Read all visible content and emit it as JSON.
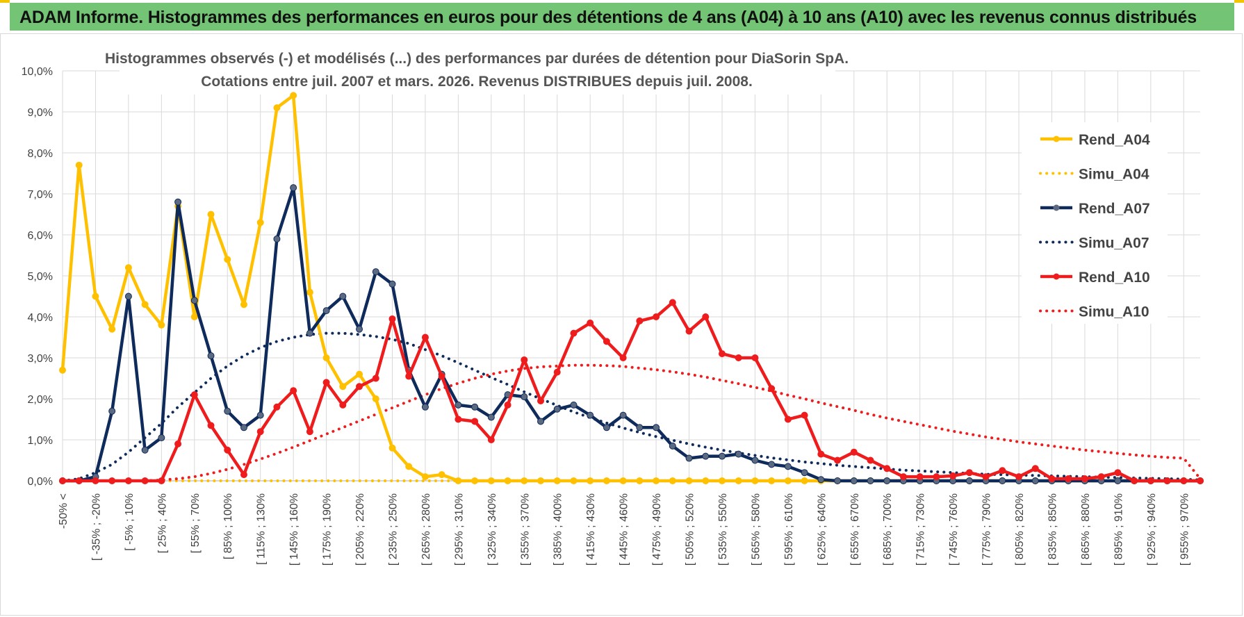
{
  "header": {
    "title": "ADAM Informe. Histogrammes des performances en euros pour des détentions de 4 ans (A04) à 10 ans (A10) avec les revenus connus distribués"
  },
  "colors": {
    "header_bg": "#74c476",
    "corner_accent": "#f2c500",
    "grid": "#d9d9d9"
  },
  "chart_data": {
    "type": "line",
    "title": "Histogrammes observés (-) et modélisés (...) des performances par durées de détention pour DiaSorin SpA.",
    "subtitle": "Cotations entre juil. 2007 et mars. 2026. Revenus DISTRIBUES depuis juil. 2008.",
    "xlabel": "",
    "ylabel": "",
    "ylim": [
      0,
      10
    ],
    "grid": true,
    "legend_position": "right",
    "y_ticks": [
      "0,0%",
      "1,0%",
      "2,0%",
      "3,0%",
      "4,0%",
      "5,0%",
      "6,0%",
      "7,0%",
      "8,0%",
      "9,0%",
      "10,0%"
    ],
    "x_tick_labels": [
      "-50% <",
      "[ -35% ; -20%",
      "[ -5% ; 10%",
      "[ 25% ; 40%",
      "[ 55% ; 70%",
      "[ 85% ; 100%",
      "[ 115% ; 130%",
      "[ 145% ; 160%",
      "[ 175% ; 190%",
      "[ 205% ; 220%",
      "[ 235% ; 250%",
      "[ 265% ; 280%",
      "[ 295% ; 310%",
      "[ 325% ; 340%",
      "[ 355% ; 370%",
      "[ 385% ; 400%",
      "[ 415% ; 430%",
      "[ 445% ; 460%",
      "[ 475% ; 490%",
      "[ 505% ; 520%",
      "[ 535% ; 550%",
      "[ 565% ; 580%",
      "[ 595% ; 610%",
      "[ 625% ; 640%",
      "[ 655% ; 670%",
      "[ 685% ; 700%",
      "[ 715% ; 730%",
      "[ 745% ; 760%",
      "[ 775% ; 790%",
      "[ 805% ; 820%",
      "[ 835% ; 850%",
      "[ 865% ; 880%",
      "[ 895% ; 910%",
      "[ 925% ; 940%",
      "[ 955% ; 970%"
    ],
    "n_categories": 70,
    "series": [
      {
        "name": "Rend_A04",
        "style": "solid",
        "color": "#ffc000",
        "values": [
          2.7,
          7.7,
          4.5,
          3.7,
          5.2,
          4.3,
          3.8,
          6.7,
          4.0,
          6.5,
          5.4,
          4.3,
          6.3,
          9.1,
          9.4,
          4.6,
          3.0,
          2.3,
          2.6,
          2.0,
          0.8,
          0.35,
          0.1,
          0.15,
          0,
          0,
          0,
          0,
          0,
          0,
          0,
          0,
          0,
          0,
          0,
          0,
          0,
          0,
          0,
          0,
          0,
          0,
          0,
          0,
          0,
          0,
          0,
          0,
          0,
          0,
          0,
          0,
          0,
          0,
          0,
          0,
          0,
          0,
          0,
          0,
          0,
          0,
          0,
          0,
          0,
          0,
          0,
          0,
          0,
          0
        ]
      },
      {
        "name": "Simu_A04",
        "style": "dotted",
        "color": "#ffc000",
        "values": [
          0,
          0,
          0,
          0,
          0,
          0,
          0,
          0,
          0,
          0,
          0,
          0,
          0,
          0,
          0,
          0,
          0,
          0,
          0,
          0,
          0,
          0,
          0,
          0,
          0,
          0,
          0,
          0,
          0,
          0,
          0,
          0,
          0,
          0,
          0,
          0,
          0,
          0,
          0,
          0,
          0,
          0,
          0,
          0,
          0,
          0,
          0,
          0,
          0,
          0,
          0,
          0,
          0,
          0,
          0,
          0,
          0,
          0,
          0,
          0,
          0,
          0,
          0,
          0,
          0,
          0,
          0,
          0,
          0,
          0
        ]
      },
      {
        "name": "Rend_A07",
        "style": "solid",
        "color": "#0f2b5b",
        "values": [
          0,
          0,
          0.1,
          1.7,
          4.5,
          0.75,
          1.05,
          6.8,
          4.4,
          3.05,
          1.7,
          1.3,
          1.6,
          5.9,
          7.15,
          3.6,
          4.15,
          4.5,
          3.7,
          5.1,
          4.8,
          2.7,
          1.8,
          2.6,
          1.85,
          1.8,
          1.55,
          2.1,
          2.05,
          1.45,
          1.75,
          1.85,
          1.6,
          1.3,
          1.6,
          1.3,
          1.3,
          0.85,
          0.55,
          0.6,
          0.6,
          0.65,
          0.5,
          0.4,
          0.35,
          0.2,
          0.03,
          0,
          0,
          0,
          0,
          0,
          0,
          0,
          0,
          0,
          0,
          0,
          0,
          0,
          0,
          0,
          0,
          0,
          0,
          0,
          0,
          0,
          0,
          0
        ]
      },
      {
        "name": "Simu_A07",
        "style": "dotted",
        "color": "#0f2b5b",
        "values": [
          0,
          0.05,
          0.2,
          0.4,
          0.7,
          1.05,
          1.4,
          1.8,
          2.15,
          2.5,
          2.8,
          3.05,
          3.25,
          3.4,
          3.5,
          3.57,
          3.6,
          3.6,
          3.57,
          3.52,
          3.45,
          3.35,
          3.2,
          3.05,
          2.88,
          2.7,
          2.52,
          2.35,
          2.17,
          2.0,
          1.84,
          1.68,
          1.54,
          1.41,
          1.29,
          1.18,
          1.08,
          0.99,
          0.9,
          0.82,
          0.75,
          0.68,
          0.62,
          0.56,
          0.51,
          0.46,
          0.42,
          0.38,
          0.35,
          0.32,
          0.29,
          0.26,
          0.24,
          0.22,
          0.2,
          0.18,
          0.16,
          0.15,
          0.14,
          0.13,
          0.12,
          0.11,
          0.1,
          0.09,
          0.08,
          0.07,
          0.06,
          0.05,
          0.04,
          0.02
        ]
      },
      {
        "name": "Rend_A10",
        "style": "solid",
        "color": "#ee1c1c",
        "values": [
          0,
          0,
          0,
          0,
          0,
          0,
          0,
          0.9,
          2.1,
          1.35,
          0.75,
          0.15,
          1.2,
          1.8,
          2.2,
          1.2,
          2.4,
          1.85,
          2.3,
          2.5,
          3.95,
          2.55,
          3.5,
          2.55,
          1.5,
          1.45,
          1.0,
          1.85,
          2.95,
          1.95,
          2.65,
          3.6,
          3.85,
          3.4,
          3.0,
          3.9,
          4.0,
          4.35,
          3.65,
          4.0,
          3.1,
          3.0,
          3.0,
          2.25,
          1.5,
          1.6,
          0.65,
          0.5,
          0.7,
          0.5,
          0.3,
          0.1,
          0.1,
          0.1,
          0.12,
          0.2,
          0.1,
          0.25,
          0.1,
          0.3,
          0.05,
          0.05,
          0.05,
          0.1,
          0.2,
          0.0,
          0.0,
          0.0,
          0.0,
          0.0
        ]
      },
      {
        "name": "Simu_A10",
        "style": "dotted",
        "color": "#ee1c1c",
        "values": [
          0,
          0,
          0,
          0,
          0,
          0,
          0.02,
          0.05,
          0.1,
          0.18,
          0.28,
          0.4,
          0.53,
          0.67,
          0.82,
          0.98,
          1.14,
          1.3,
          1.46,
          1.62,
          1.78,
          1.94,
          2.1,
          2.25,
          2.38,
          2.5,
          2.6,
          2.68,
          2.74,
          2.78,
          2.8,
          2.82,
          2.82,
          2.81,
          2.79,
          2.75,
          2.71,
          2.66,
          2.6,
          2.53,
          2.45,
          2.37,
          2.28,
          2.19,
          2.09,
          2.0,
          1.9,
          1.81,
          1.72,
          1.62,
          1.53,
          1.45,
          1.37,
          1.29,
          1.21,
          1.14,
          1.07,
          1.01,
          0.95,
          0.9,
          0.85,
          0.8,
          0.75,
          0.71,
          0.67,
          0.63,
          0.6,
          0.57,
          0.55,
          0.05
        ]
      }
    ]
  }
}
